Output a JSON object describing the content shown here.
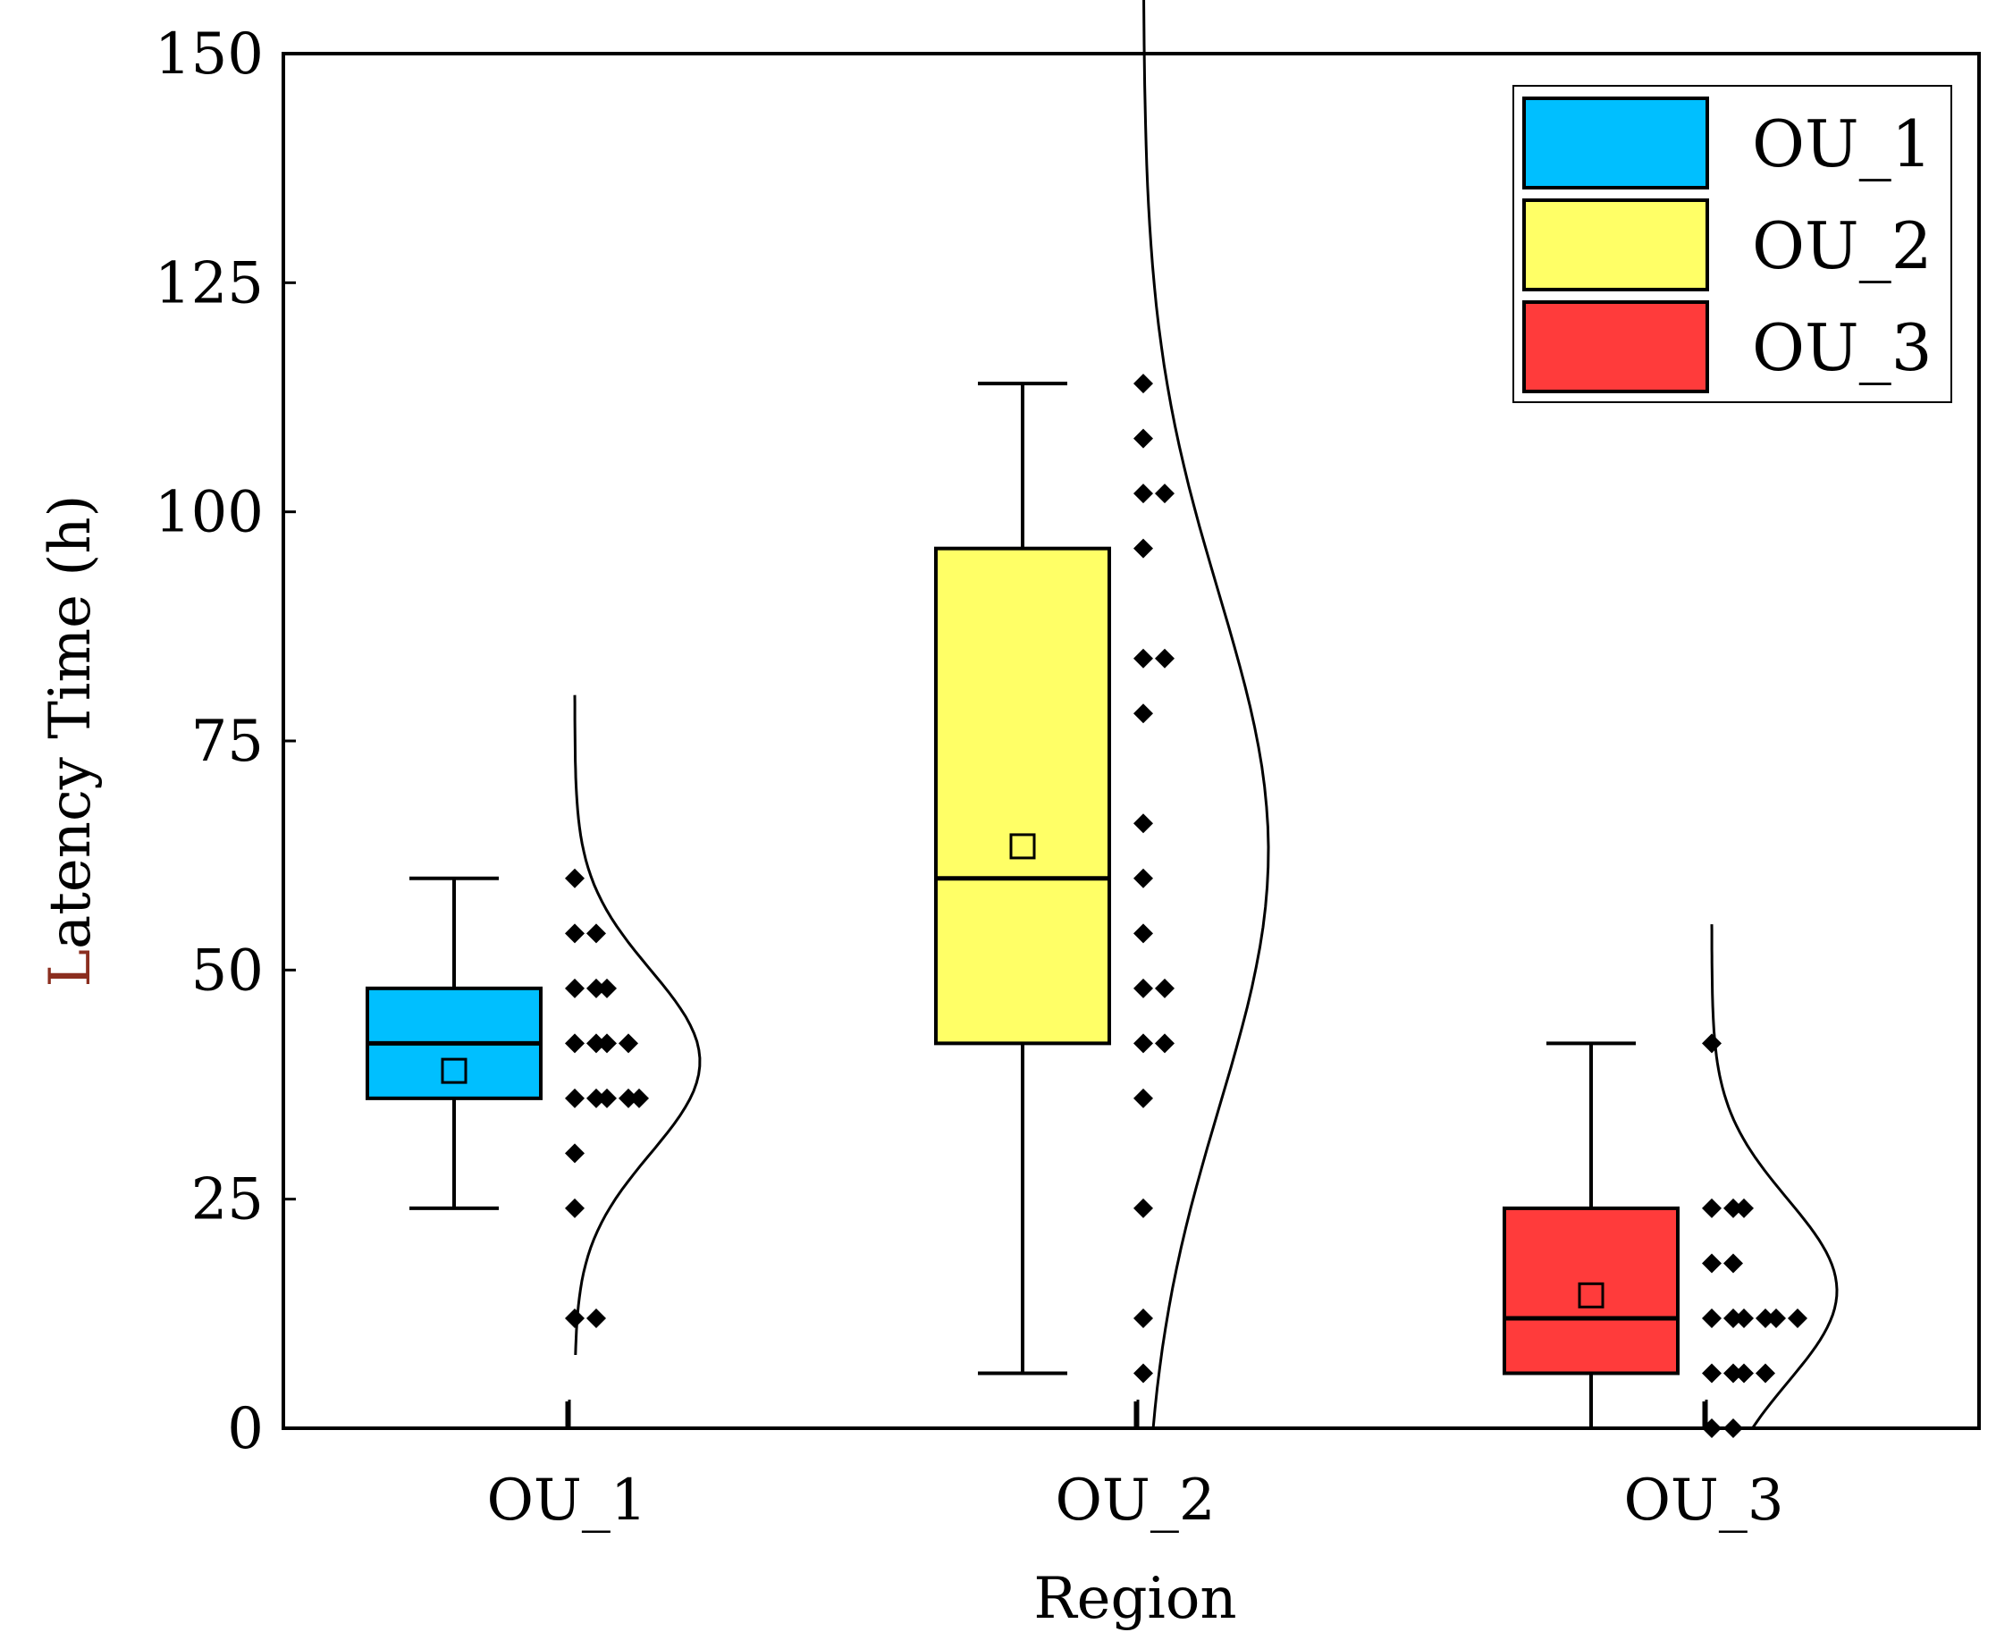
{
  "chart_data": {
    "type": "box",
    "title": "",
    "xlabel": "Region",
    "ylabel": "Latency Time (h)",
    "ylabel_parts": {
      "first": "L",
      "rest": "atency Time (h)"
    },
    "ylim": [
      0,
      150
    ],
    "yticks": [
      0,
      25,
      50,
      75,
      100,
      125,
      150
    ],
    "categories": [
      "OU_1",
      "OU_2",
      "OU_3"
    ],
    "legend": {
      "position": "top-right",
      "entries": [
        "OU_1",
        "OU_2",
        "OU_3"
      ]
    },
    "series": [
      {
        "name": "OU_1",
        "color": "#00bfff",
        "whisker_low": 24,
        "q1": 36,
        "median": 42,
        "q3": 48,
        "whisker_high": 60,
        "mean": 39,
        "points": [
          60,
          54,
          54,
          48,
          48,
          48,
          42,
          42,
          42,
          42,
          36,
          36,
          36,
          36,
          36,
          30,
          24,
          12,
          12
        ],
        "distribution": {
          "mean": 40,
          "sd": 10
        }
      },
      {
        "name": "OU_2",
        "color": "#ffff66",
        "whisker_low": 6,
        "q1": 42,
        "median": 60,
        "q3": 96,
        "whisker_high": 114,
        "mean": 63.5,
        "points": [
          114,
          108,
          102,
          102,
          96,
          84,
          84,
          78,
          66,
          60,
          54,
          48,
          48,
          42,
          42,
          36,
          24,
          12,
          6
        ],
        "distribution": {
          "mean": 63,
          "sd": 28
        }
      },
      {
        "name": "OU_3",
        "color": "#ff3b3b",
        "whisker_low": 0,
        "q1": 6,
        "median": 12,
        "q3": 24,
        "whisker_high": 42,
        "mean": 14.5,
        "points": [
          42,
          24,
          24,
          24,
          18,
          18,
          12,
          12,
          12,
          12,
          12,
          12,
          6,
          6,
          6,
          6,
          0,
          0
        ],
        "distribution": {
          "mean": 15,
          "sd": 10
        }
      }
    ]
  }
}
